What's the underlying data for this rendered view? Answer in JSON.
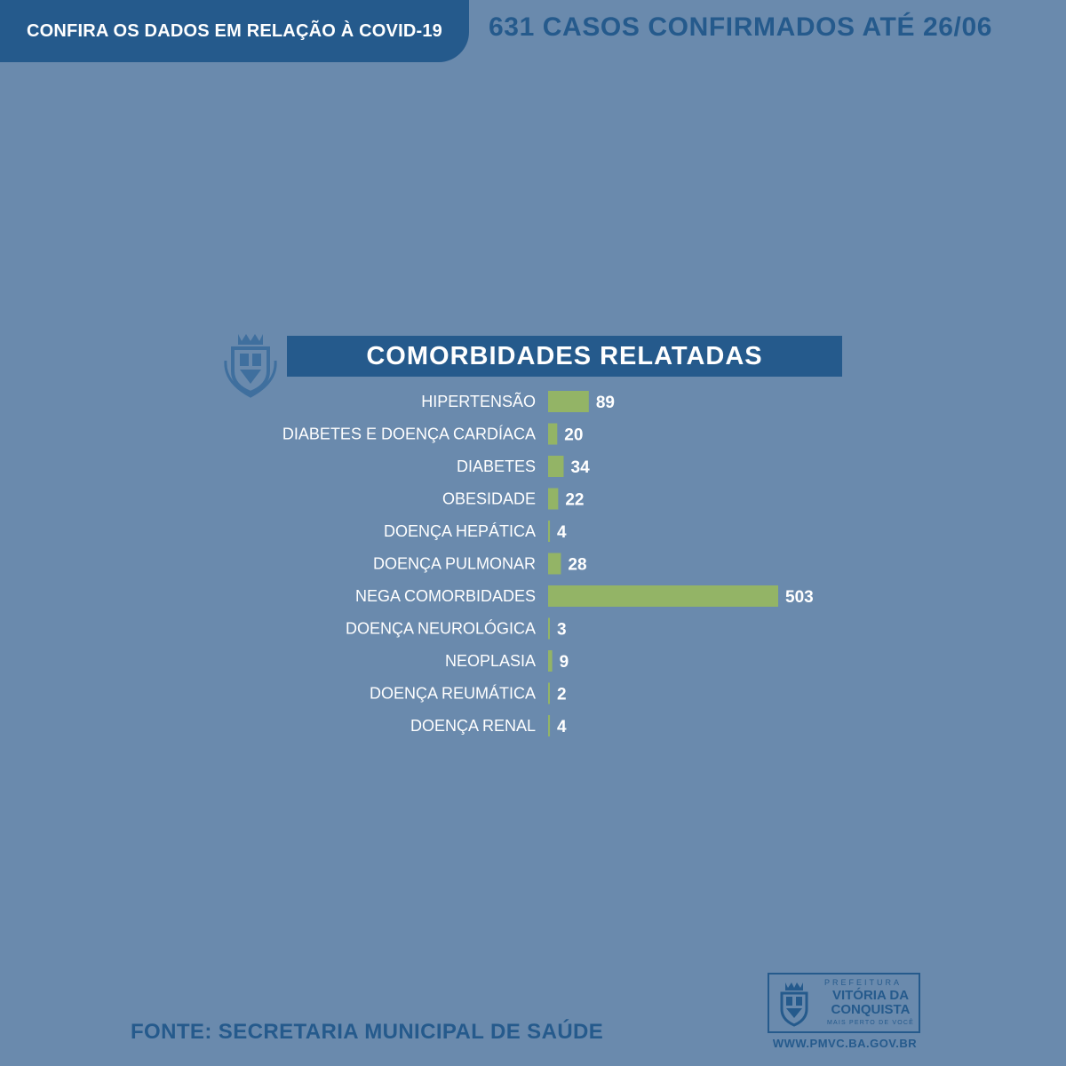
{
  "header": {
    "tab_text": "CONFIRA OS DADOS EM RELAÇÃO À COVID-19",
    "headline": "631 CASOS CONFIRMADOS ATÉ 26/06"
  },
  "icons": {
    "crest": "municipal-coat-of-arms-icon"
  },
  "colors": {
    "background": "#6a8aad",
    "accent": "#255a8c",
    "bar": "#93b466"
  },
  "chart_data": {
    "type": "bar",
    "orientation": "horizontal",
    "title": "COMORBIDADES RELATADAS",
    "categories": [
      "HIPERTENSÃO",
      "DIABETES E DOENÇA CARDÍACA",
      "DIABETES",
      "OBESIDADE",
      "DOENÇA HEPÁTICA",
      "DOENÇA PULMONAR",
      "NEGA COMORBIDADES",
      "DOENÇA NEUROLÓGICA",
      "NEOPLASIA",
      "DOENÇA REUMÁTICA",
      "DOENÇA RENAL"
    ],
    "values": [
      89,
      20,
      34,
      22,
      4,
      28,
      503,
      3,
      9,
      2,
      4
    ],
    "xlabel": "",
    "ylabel": "",
    "grid": false,
    "legend": "none"
  },
  "footer": {
    "source": "FONTE: SECRETARIA MUNICIPAL DE SAÚDE",
    "logo_prefix": "PREFEITURA",
    "logo_name": "VITÓRIA DA CONQUISTA",
    "logo_slogan": "MAIS PERTO DE VOCÊ",
    "url": "WWW.PMVC.BA.GOV.BR"
  }
}
